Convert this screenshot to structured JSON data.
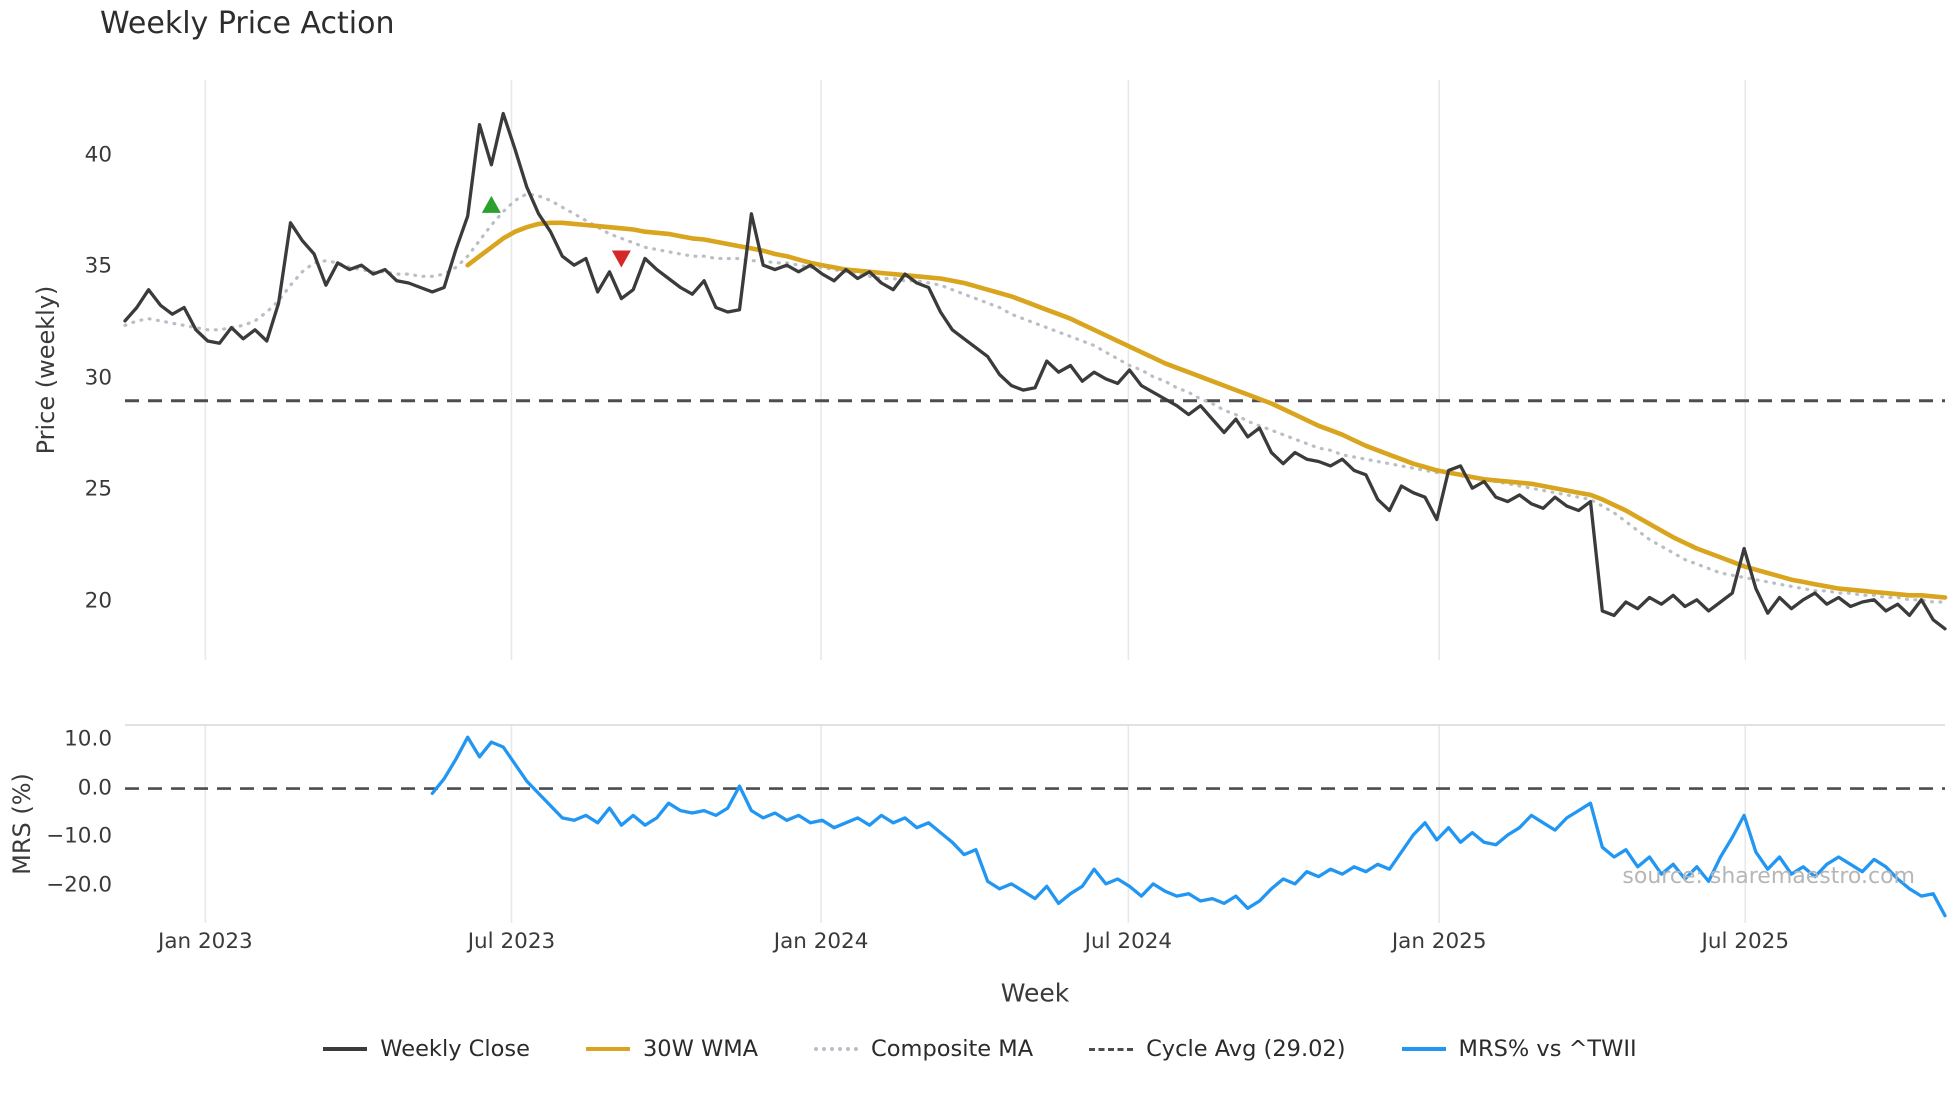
{
  "title": "Weekly Price Action",
  "watermark": "source: sharemaestro.com",
  "colors": {
    "close": "#3b3b3b",
    "wma": "#d9a51f",
    "composite": "#b9bfc7",
    "cycle": "#4d4d4d",
    "mrs": "#2196f3",
    "grid": "#e8e8e8",
    "panel_border": "#d9d9d9",
    "buy_marker": "#2ca02c",
    "sell_marker": "#d62728",
    "tick_text": "#3a3a3a",
    "watermark_text": "#b6b6b6"
  },
  "legend": {
    "items": [
      {
        "label": "Weekly Close",
        "color_key": "close",
        "swatch": "solid"
      },
      {
        "label": "30W WMA",
        "color_key": "wma",
        "swatch": "solid"
      },
      {
        "label": "Composite MA",
        "color_key": "composite",
        "swatch": "dotted"
      },
      {
        "label": "Cycle Avg (29.02)",
        "color_key": "cycle",
        "swatch": "dashed"
      },
      {
        "label": "MRS% vs ^TWII",
        "color_key": "mrs",
        "swatch": "solid"
      }
    ]
  },
  "chart_data": {
    "type": "line",
    "title": "Weekly Price Action",
    "x": {
      "label": "Week",
      "range": [
        0,
        154
      ],
      "ticks": [
        {
          "pos": 6.8,
          "label": "Jan 2023"
        },
        {
          "pos": 32.7,
          "label": "Jul 2023"
        },
        {
          "pos": 58.9,
          "label": "Jan 2024"
        },
        {
          "pos": 84.9,
          "label": "Jul 2024"
        },
        {
          "pos": 111.2,
          "label": "Jan 2025"
        },
        {
          "pos": 137.1,
          "label": "Jul 2025"
        }
      ]
    },
    "panels": [
      {
        "id": "price",
        "ylabel": "Price (weekly)",
        "ylim": [
          17.4,
          43.4
        ],
        "yticks": [
          {
            "v": 40,
            "label": "40"
          },
          {
            "v": 35,
            "label": "35"
          },
          {
            "v": 30,
            "label": "30"
          },
          {
            "v": 25,
            "label": "25"
          },
          {
            "v": 20,
            "label": "20"
          }
        ],
        "hlines": [
          {
            "name": "cycle-avg-line",
            "value": 29.02,
            "color_key": "cycle",
            "width": 3,
            "dash": "dashed"
          }
        ],
        "markers": [
          {
            "name": "buy-signal",
            "shape": "triangle-up",
            "color_key": "buy_marker",
            "x": 31,
            "y": 37.8
          },
          {
            "name": "sell-signal",
            "shape": "triangle-down",
            "color_key": "sell_marker",
            "x": 42,
            "y": 35.4
          }
        ],
        "series": [
          {
            "name": "Composite MA",
            "color_key": "composite",
            "width": 3.2,
            "dash": "dotted",
            "start_index": 0,
            "values": [
              32.4,
              32.6,
              32.7,
              32.6,
              32.5,
              32.4,
              32.3,
              32.2,
              32.2,
              32.3,
              32.4,
              32.6,
              33.0,
              33.5,
              34.2,
              34.8,
              35.2,
              35.3,
              35.2,
              35.0,
              34.9,
              34.8,
              34.8,
              34.7,
              34.7,
              34.6,
              34.6,
              34.7,
              35.0,
              35.5,
              36.2,
              36.9,
              37.5,
              38.0,
              38.3,
              38.2,
              38.0,
              37.7,
              37.4,
              37.1,
              36.8,
              36.5,
              36.3,
              36.1,
              35.9,
              35.8,
              35.7,
              35.6,
              35.5,
              35.5,
              35.4,
              35.4,
              35.4,
              35.3,
              35.3,
              35.2,
              35.2,
              35.1,
              35.0,
              35.0,
              34.9,
              34.8,
              34.7,
              34.6,
              34.5,
              34.5,
              34.4,
              34.4,
              34.3,
              34.2,
              34.0,
              33.8,
              33.6,
              33.4,
              33.2,
              32.9,
              32.7,
              32.5,
              32.3,
              32.1,
              31.9,
              31.7,
              31.5,
              31.2,
              30.9,
              30.6,
              30.4,
              30.1,
              29.9,
              29.6,
              29.4,
              29.1,
              28.9,
              28.6,
              28.4,
              28.1,
              27.9,
              27.7,
              27.5,
              27.3,
              27.1,
              26.9,
              26.8,
              26.6,
              26.5,
              26.4,
              26.3,
              26.2,
              26.1,
              26.0,
              25.9,
              25.8,
              25.8,
              25.7,
              25.6,
              25.5,
              25.4,
              25.3,
              25.2,
              25.1,
              25.0,
              24.9,
              24.8,
              24.7,
              24.6,
              24.3,
              24.0,
              23.6,
              23.2,
              22.8,
              22.5,
              22.2,
              21.9,
              21.7,
              21.5,
              21.3,
              21.2,
              21.1,
              21.0,
              20.9,
              20.8,
              20.7,
              20.6,
              20.5,
              20.5,
              20.4,
              20.4,
              20.3,
              20.3,
              20.2,
              20.2,
              20.1,
              20.1,
              20.0,
              20.0
            ]
          },
          {
            "name": "30W WMA",
            "color_key": "wma",
            "width": 4.6,
            "dash": "none",
            "start_index": 29,
            "values": [
              35.1,
              35.5,
              35.9,
              36.3,
              36.6,
              36.8,
              36.95,
              37.0,
              37.0,
              36.95,
              36.9,
              36.85,
              36.8,
              36.75,
              36.7,
              36.6,
              36.55,
              36.5,
              36.4,
              36.3,
              36.25,
              36.15,
              36.05,
              35.95,
              35.85,
              35.75,
              35.6,
              35.5,
              35.35,
              35.2,
              35.1,
              35.0,
              34.9,
              34.85,
              34.8,
              34.75,
              34.7,
              34.65,
              34.6,
              34.55,
              34.5,
              34.4,
              34.3,
              34.15,
              34.0,
              33.85,
              33.7,
              33.5,
              33.3,
              33.1,
              32.9,
              32.7,
              32.45,
              32.2,
              31.95,
              31.7,
              31.45,
              31.2,
              30.95,
              30.7,
              30.5,
              30.3,
              30.1,
              29.9,
              29.7,
              29.5,
              29.3,
              29.1,
              28.9,
              28.65,
              28.4,
              28.15,
              27.9,
              27.7,
              27.5,
              27.25,
              27.0,
              26.8,
              26.6,
              26.4,
              26.2,
              26.05,
              25.9,
              25.8,
              25.7,
              25.6,
              25.5,
              25.45,
              25.4,
              25.35,
              25.3,
              25.2,
              25.1,
              25.0,
              24.9,
              24.8,
              24.6,
              24.35,
              24.1,
              23.8,
              23.5,
              23.2,
              22.9,
              22.65,
              22.4,
              22.2,
              22.0,
              21.8,
              21.6,
              21.45,
              21.3,
              21.15,
              21.0,
              20.9,
              20.8,
              20.7,
              20.6,
              20.55,
              20.5,
              20.45,
              20.4,
              20.35,
              20.3,
              20.3,
              20.25,
              20.2
            ]
          },
          {
            "name": "Weekly Close",
            "color_key": "close",
            "width": 3.3,
            "dash": "none",
            "start_index": 0,
            "values": [
              32.6,
              33.2,
              34.0,
              33.3,
              32.9,
              33.2,
              32.2,
              31.7,
              31.6,
              32.3,
              31.8,
              32.2,
              31.7,
              33.4,
              37.0,
              36.2,
              35.6,
              34.2,
              35.2,
              34.9,
              35.1,
              34.7,
              34.9,
              34.4,
              34.3,
              34.1,
              33.9,
              34.1,
              35.8,
              37.3,
              41.4,
              39.6,
              41.9,
              40.3,
              38.6,
              37.4,
              36.6,
              35.5,
              35.1,
              35.4,
              33.9,
              34.8,
              33.6,
              34.0,
              35.4,
              34.9,
              34.5,
              34.1,
              33.8,
              34.4,
              33.2,
              33.0,
              33.1,
              37.4,
              35.1,
              34.9,
              35.1,
              34.8,
              35.1,
              34.7,
              34.4,
              34.9,
              34.5,
              34.8,
              34.3,
              34.0,
              34.7,
              34.3,
              34.1,
              33.0,
              32.2,
              31.8,
              31.4,
              31.0,
              30.2,
              29.7,
              29.5,
              29.6,
              30.8,
              30.3,
              30.6,
              29.9,
              30.3,
              30.0,
              29.8,
              30.4,
              29.7,
              29.4,
              29.1,
              28.8,
              28.4,
              28.8,
              28.2,
              27.6,
              28.2,
              27.4,
              27.8,
              26.7,
              26.2,
              26.7,
              26.4,
              26.3,
              26.1,
              26.4,
              25.9,
              25.7,
              24.6,
              24.1,
              25.2,
              24.9,
              24.7,
              23.7,
              25.9,
              26.1,
              25.1,
              25.4,
              24.7,
              24.5,
              24.8,
              24.4,
              24.2,
              24.7,
              24.3,
              24.1,
              24.5,
              19.6,
              19.4,
              20.0,
              19.7,
              20.2,
              19.9,
              20.3,
              19.8,
              20.1,
              19.6,
              20.0,
              20.4,
              22.4,
              20.6,
              19.5,
              20.2,
              19.7,
              20.1,
              20.4,
              19.9,
              20.2,
              19.8,
              20.0,
              20.1,
              19.6,
              19.9,
              19.4,
              20.1,
              19.2,
              18.8
            ]
          }
        ]
      },
      {
        "id": "mrs",
        "ylabel": "MRS (%)",
        "ylim": [
          -27.5,
          13
        ],
        "top_border": true,
        "yticks": [
          {
            "v": 10,
            "label": "10.0"
          },
          {
            "v": 0,
            "label": "0.0"
          },
          {
            "v": -10,
            "label": "−10.0"
          },
          {
            "v": -20,
            "label": "−20.0"
          }
        ],
        "hlines": [
          {
            "name": "zero-line",
            "value": 0,
            "color_key": "cycle",
            "width": 2.6,
            "dash": "dashed"
          }
        ],
        "markers": [],
        "series": [
          {
            "name": "MRS% vs ^TWII",
            "color_key": "mrs",
            "width": 3.3,
            "dash": "none",
            "start_index": 26,
            "values": [
              -1.0,
              2.0,
              6.0,
              10.5,
              6.5,
              9.5,
              8.5,
              5.0,
              1.5,
              -1.0,
              -3.5,
              -6.0,
              -6.5,
              -5.5,
              -7.0,
              -4.0,
              -7.5,
              -5.5,
              -7.5,
              -6.0,
              -3.0,
              -4.5,
              -5.0,
              -4.5,
              -5.5,
              -4.0,
              0.5,
              -4.5,
              -6.0,
              -5.0,
              -6.5,
              -5.5,
              -7.0,
              -6.5,
              -8.0,
              -7.0,
              -6.0,
              -7.5,
              -5.5,
              -7.0,
              -6.0,
              -8.0,
              -7.0,
              -9.0,
              -11.0,
              -13.5,
              -12.5,
              -19.0,
              -20.5,
              -19.5,
              -21.0,
              -22.5,
              -20.0,
              -23.5,
              -21.5,
              -20.0,
              -16.5,
              -19.5,
              -18.5,
              -20.0,
              -22.0,
              -19.5,
              -21.0,
              -22.0,
              -21.5,
              -23.0,
              -22.5,
              -23.5,
              -22.0,
              -24.5,
              -23.0,
              -20.5,
              -18.5,
              -19.5,
              -17.0,
              -18.0,
              -16.5,
              -17.5,
              -16.0,
              -17.0,
              -15.5,
              -16.5,
              -13.0,
              -9.5,
              -7.0,
              -10.5,
              -8.0,
              -11.0,
              -9.0,
              -11.0,
              -11.5,
              -9.5,
              -8.0,
              -5.5,
              -7.0,
              -8.5,
              -6.0,
              -4.5,
              -3.0,
              -12.0,
              -14.0,
              -12.5,
              -16.0,
              -14.0,
              -17.5,
              -15.5,
              -18.5,
              -16.0,
              -19.0,
              -14.0,
              -10.0,
              -5.5,
              -13.0,
              -16.5,
              -14.0,
              -17.5,
              -16.0,
              -18.0,
              -15.5,
              -14.0,
              -15.5,
              -17.0,
              -14.5,
              -16.0,
              -18.5,
              -20.5,
              -22.0,
              -21.5,
              -26.0
            ]
          }
        ]
      }
    ]
  }
}
